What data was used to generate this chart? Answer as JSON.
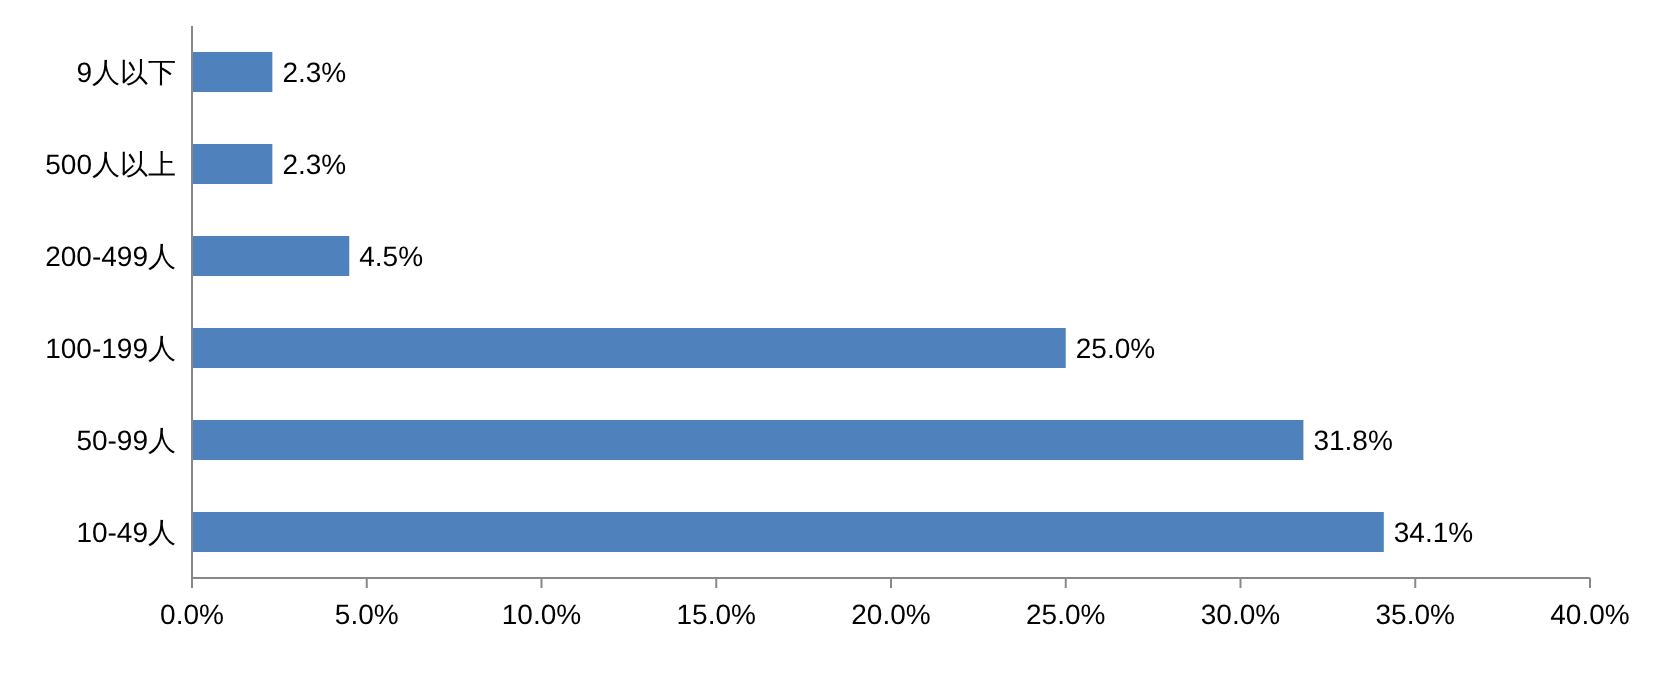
{
  "chart_data": {
    "type": "bar",
    "orientation": "horizontal",
    "categories": [
      "9人以下",
      "500人以上",
      "200-499人",
      "100-199人",
      "50-99人",
      "10-49人"
    ],
    "values": [
      2.3,
      2.3,
      4.5,
      25.0,
      31.8,
      34.1
    ],
    "value_labels": [
      "2.3%",
      "2.3%",
      "4.5%",
      "25.0%",
      "31.8%",
      "34.1%"
    ],
    "color": "#4f81bd",
    "xlim": [
      0,
      40
    ],
    "xticks": [
      {
        "value": 0,
        "label": "0.0%"
      },
      {
        "value": 5,
        "label": "5.0%"
      },
      {
        "value": 10,
        "label": "10.0%"
      },
      {
        "value": 15,
        "label": "15.0%"
      },
      {
        "value": 20,
        "label": "20.0%"
      },
      {
        "value": 25,
        "label": "25.0%"
      },
      {
        "value": 30,
        "label": "30.0%"
      },
      {
        "value": 35,
        "label": "35.0%"
      },
      {
        "value": 40,
        "label": "40.0%"
      }
    ],
    "grid": false,
    "legend": false
  }
}
